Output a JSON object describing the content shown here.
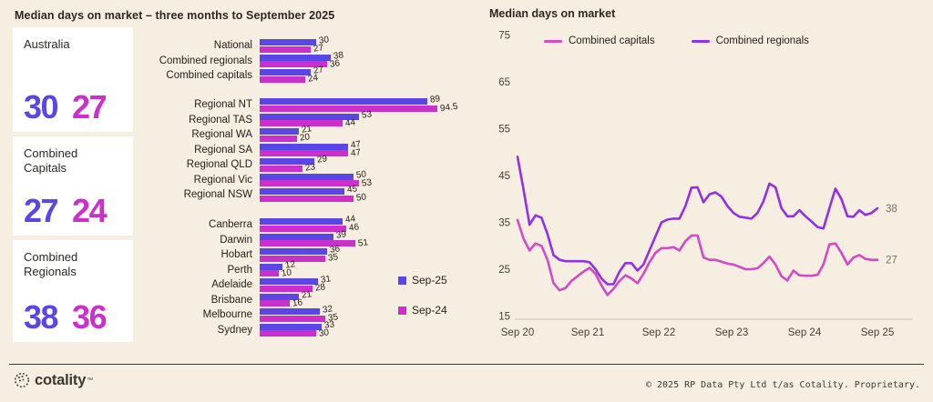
{
  "header": {
    "title": "Median days on market – three months to September 2025"
  },
  "colors": {
    "background": "#F6EEE0",
    "card_background": "#FFFFFF",
    "sep25_blue": "#5847E6",
    "sep24_magenta": "#CC2FCB",
    "regionals_line_purple": "#9230E8",
    "capitals_line_pink": "#D24AC8",
    "text_dark": "#2B2822"
  },
  "summary_cards": [
    {
      "label": "Australia",
      "sep25": "30",
      "sep24": "27"
    },
    {
      "label": "Combined Capitals",
      "sep25": "27",
      "sep24": "24"
    },
    {
      "label": "Combined Regionals",
      "sep25": "38",
      "sep24": "36"
    }
  ],
  "chart_data": [
    {
      "type": "bar",
      "orientation": "horizontal",
      "title": "Median days on market – three months to September 2025",
      "xlim": [
        0,
        100
      ],
      "legend": [
        {
          "label": "Sep-25",
          "color": "#5847E6"
        },
        {
          "label": "Sep-24",
          "color": "#CC2FCB"
        }
      ],
      "groups": [
        {
          "rows": [
            {
              "category": "National",
              "sep25": 30,
              "sep24": 27
            },
            {
              "category": "Combined regionals",
              "sep25": 38,
              "sep24": 36
            },
            {
              "category": "Combined capitals",
              "sep25": 27,
              "sep24": 24
            }
          ]
        },
        {
          "rows": [
            {
              "category": "Regional NT",
              "sep25": 89,
              "sep24": 94.5
            },
            {
              "category": "Regional TAS",
              "sep25": 53,
              "sep24": 44
            },
            {
              "category": "Regional WA",
              "sep25": 21,
              "sep24": 20
            },
            {
              "category": "Regional SA",
              "sep25": 47,
              "sep24": 47
            },
            {
              "category": "Regional QLD",
              "sep25": 29,
              "sep24": 23
            },
            {
              "category": "Regional Vic",
              "sep25": 50,
              "sep24": 53
            },
            {
              "category": "Regional NSW",
              "sep25": 45,
              "sep24": 50
            }
          ]
        },
        {
          "rows": [
            {
              "category": "Canberra",
              "sep25": 44,
              "sep24": 46
            },
            {
              "category": "Darwin",
              "sep25": 39,
              "sep24": 51
            },
            {
              "category": "Hobart",
              "sep25": 36,
              "sep24": 35
            },
            {
              "category": "Perth",
              "sep25": 12,
              "sep24": 10
            },
            {
              "category": "Adelaide",
              "sep25": 31,
              "sep24": 28
            },
            {
              "category": "Brisbane",
              "sep25": 21,
              "sep24": 16
            },
            {
              "category": "Melbourne",
              "sep25": 32,
              "sep24": 35
            },
            {
              "category": "Sydney",
              "sep25": 33,
              "sep24": 30
            }
          ]
        }
      ]
    },
    {
      "type": "line",
      "title": "Median days on market",
      "ylim": [
        15,
        75
      ],
      "yticks": [
        75,
        65,
        55,
        45,
        35,
        25,
        15
      ],
      "xticks": [
        "Sep 20",
        "Sep 21",
        "Sep 22",
        "Sep 23",
        "Sep 24",
        "Sep 25"
      ],
      "x_interval": "monthly, Sep 2020 to Sep 2025",
      "grid": "baseline only",
      "legend_position": "top",
      "series": [
        {
          "name": "Combined capitals",
          "color": "#D24AC8",
          "end_label": "27",
          "values": [
            35.5,
            31.5,
            29,
            30.5,
            30,
            27,
            22,
            20.5,
            21,
            22.5,
            23.5,
            24.5,
            25.3,
            24,
            21.5,
            19.5,
            20.8,
            22.5,
            23.7,
            23,
            22,
            24,
            26.5,
            28.5,
            29.5,
            29.5,
            29.7,
            29,
            31,
            32.2,
            32.2,
            27.5,
            27,
            27,
            26.6,
            26.2,
            26,
            25.5,
            25,
            25,
            25.2,
            26.3,
            27.7,
            26,
            23.5,
            22.6,
            24.7,
            23.7,
            23.6,
            23.6,
            23.8,
            26,
            30.3,
            30.5,
            28.5,
            26,
            27.5,
            28,
            27.2,
            27,
            27
          ]
        },
        {
          "name": "Combined regionals",
          "color": "#9230E8",
          "end_label": "38",
          "values": [
            49,
            42,
            34.5,
            36.5,
            36,
            32.5,
            28,
            27,
            26.7,
            26.7,
            26.7,
            26.7,
            26.5,
            25,
            23,
            21.8,
            21.8,
            24.5,
            26.3,
            26.3,
            24.7,
            26,
            29,
            32,
            35,
            35.6,
            35.8,
            35.8,
            38.5,
            42.4,
            42.5,
            39.3,
            41,
            41.4,
            40.5,
            38.5,
            37,
            36.2,
            36,
            35.8,
            37,
            39.5,
            43.3,
            42.5,
            38,
            36.3,
            36.3,
            37.6,
            36.3,
            35.2,
            34,
            33.7,
            38,
            42.2,
            40,
            36.3,
            36.2,
            37.6,
            36.6,
            37,
            38
          ]
        }
      ]
    }
  ],
  "footer": {
    "brand": "cotality",
    "trademark": "™",
    "copyright": "© 2025 RP Data Pty Ltd t/as Cotality. Proprietary."
  }
}
